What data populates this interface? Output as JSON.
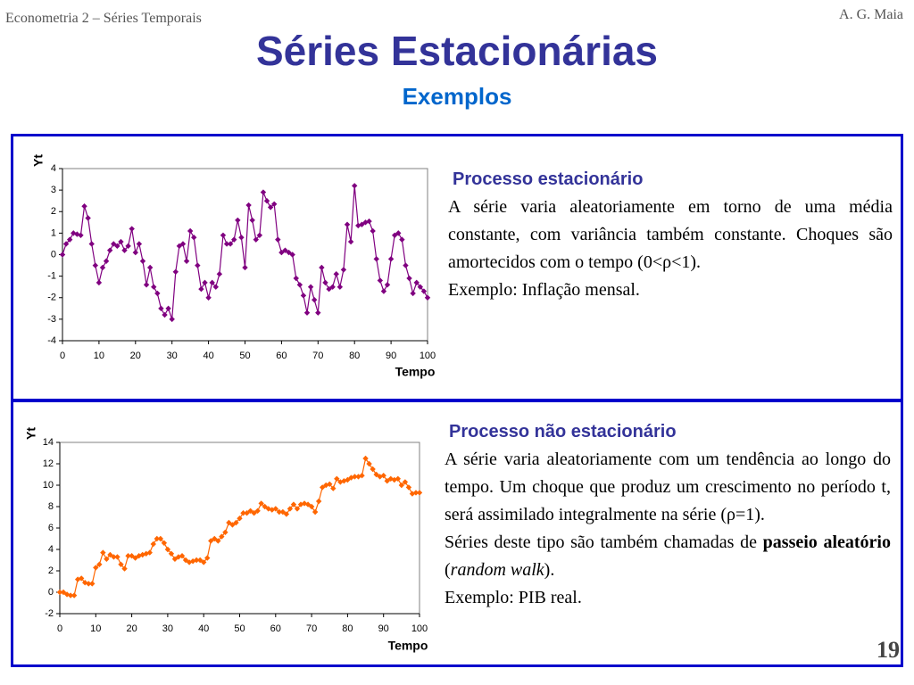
{
  "header": {
    "course": "Econometria 2 – Séries Temporais",
    "author": "A. G. Maia",
    "title": "Séries Estacionárias",
    "subtitle": "Exemplos",
    "page": "19"
  },
  "panels": [
    {
      "heading": "Processo estacionário",
      "paragraphs": [
        [
          {
            "text": "A série varia aleatoriamente em torno de uma média constante, com variância também constante. Choques são amortecidos com o tempo (0<ρ<1)."
          }
        ],
        [
          {
            "text": "Exemplo: Inflação mensal."
          }
        ]
      ]
    },
    {
      "heading": "Processo não estacionário",
      "paragraphs": [
        [
          {
            "text": "A série varia aleatoriamente com um tendência ao longo do tempo. Um choque que produz um crescimento no período t, será assimilado integralmente na série (ρ=1)."
          }
        ],
        [
          {
            "text": "Séries deste tipo são também chamadas de "
          },
          {
            "text": "passeio aleatório",
            "style": "bold"
          },
          {
            "text": " ("
          },
          {
            "text": "random walk",
            "style": "italic"
          },
          {
            "text": ")."
          }
        ],
        [
          {
            "text": "Exemplo: PIB real."
          }
        ]
      ]
    }
  ],
  "chart_data": [
    {
      "type": "line",
      "marker": "diamond",
      "color": "#800080",
      "ylabel": "Yt",
      "xlabel": "Tempo",
      "x": [
        0,
        1,
        2,
        3,
        4,
        5,
        6,
        7,
        8,
        9,
        10,
        11,
        12,
        13,
        14,
        15,
        16,
        17,
        18,
        19,
        20,
        21,
        22,
        23,
        24,
        25,
        26,
        27,
        28,
        29,
        30,
        31,
        32,
        33,
        34,
        35,
        36,
        37,
        38,
        39,
        40,
        41,
        42,
        43,
        44,
        45,
        46,
        47,
        48,
        49,
        50,
        51,
        52,
        53,
        54,
        55,
        56,
        57,
        58,
        59,
        60,
        61,
        62,
        63,
        64,
        65,
        66,
        67,
        68,
        69,
        70,
        71,
        72,
        73,
        74,
        75,
        76,
        77,
        78,
        79,
        80,
        81,
        82,
        83,
        84,
        85,
        86,
        87,
        88,
        89,
        90,
        91,
        92,
        93,
        94,
        95,
        96,
        97,
        98,
        99,
        100
      ],
      "values": [
        0,
        0.5,
        0.7,
        1.0,
        0.95,
        0.9,
        2.25,
        1.7,
        0.5,
        -0.5,
        -1.3,
        -0.6,
        -0.3,
        0.2,
        0.5,
        0.4,
        0.6,
        0.2,
        0.4,
        1.2,
        0.1,
        0.5,
        -0.3,
        -1.4,
        -0.6,
        -1.5,
        -1.8,
        -2.5,
        -2.8,
        -2.5,
        -3.0,
        -0.8,
        0.4,
        0.5,
        -0.3,
        1.1,
        0.8,
        -0.5,
        -1.6,
        -1.3,
        -2.0,
        -1.3,
        -1.5,
        -0.9,
        0.9,
        0.5,
        0.5,
        0.7,
        1.6,
        0.8,
        -0.6,
        2.3,
        1.6,
        0.7,
        0.9,
        2.9,
        2.5,
        2.2,
        2.35,
        0.7,
        0.1,
        0.2,
        0.1,
        0.0,
        -1.1,
        -1.4,
        -1.9,
        -2.7,
        -1.5,
        -2.1,
        -2.7,
        -0.6,
        -1.3,
        -1.6,
        -1.5,
        -0.9,
        -1.5,
        -0.7,
        1.4,
        0.6,
        3.2,
        1.35,
        1.4,
        1.5,
        1.55,
        1.1,
        -0.2,
        -1.2,
        -1.7,
        -1.4,
        -0.2,
        0.9,
        1.0,
        0.7,
        -0.5,
        -1.1,
        -1.8,
        -1.3,
        -1.5,
        -1.7,
        -2.0
      ],
      "xlim": [
        0,
        100
      ],
      "xticks": [
        0,
        10,
        20,
        30,
        40,
        50,
        60,
        70,
        80,
        90,
        100
      ],
      "ylim": [
        -4,
        4
      ],
      "yticks": [
        -4,
        -3,
        -2,
        -1,
        0,
        1,
        2,
        3,
        4
      ]
    },
    {
      "type": "line",
      "marker": "diamond",
      "color": "#ff6600",
      "ylabel": "Yt",
      "xlabel": "Tempo",
      "x": [
        0,
        1,
        2,
        3,
        4,
        5,
        6,
        7,
        8,
        9,
        10,
        11,
        12,
        13,
        14,
        15,
        16,
        17,
        18,
        19,
        20,
        21,
        22,
        23,
        24,
        25,
        26,
        27,
        28,
        29,
        30,
        31,
        32,
        33,
        34,
        35,
        36,
        37,
        38,
        39,
        40,
        41,
        42,
        43,
        44,
        45,
        46,
        47,
        48,
        49,
        50,
        51,
        52,
        53,
        54,
        55,
        56,
        57,
        58,
        59,
        60,
        61,
        62,
        63,
        64,
        65,
        66,
        67,
        68,
        69,
        70,
        71,
        72,
        73,
        74,
        75,
        76,
        77,
        78,
        79,
        80,
        81,
        82,
        83,
        84,
        85,
        86,
        87,
        88,
        89,
        90,
        91,
        92,
        93,
        94,
        95,
        96,
        97,
        98,
        99,
        100
      ],
      "values": [
        0,
        0,
        -0.2,
        -0.3,
        -0.3,
        1.2,
        1.3,
        0.9,
        0.8,
        0.8,
        2.3,
        2.6,
        3.7,
        3.1,
        3.5,
        3.3,
        3.3,
        2.6,
        2.2,
        3.4,
        3.4,
        3.2,
        3.4,
        3.5,
        3.6,
        3.7,
        4.5,
        5.0,
        5.0,
        4.6,
        4.0,
        3.6,
        3.1,
        3.3,
        3.4,
        3.0,
        2.8,
        2.9,
        3.0,
        3.0,
        2.8,
        3.2,
        4.8,
        5.0,
        4.8,
        5.2,
        5.6,
        6.5,
        6.3,
        6.5,
        6.9,
        7.4,
        7.4,
        7.6,
        7.4,
        7.6,
        8.3,
        8.0,
        7.8,
        7.7,
        7.8,
        7.5,
        7.5,
        7.3,
        7.8,
        8.2,
        7.8,
        8.2,
        8.3,
        8.2,
        8.0,
        7.5,
        8.5,
        9.8,
        10.0,
        10.1,
        9.7,
        10.6,
        10.3,
        10.4,
        10.5,
        10.7,
        10.8,
        10.8,
        10.9,
        12.5,
        12.0,
        11.5,
        11.0,
        10.8,
        10.9,
        10.4,
        10.6,
        10.5,
        10.6,
        10.0,
        10.3,
        9.8,
        9.2,
        9.3,
        9.3
      ],
      "xlim": [
        0,
        100
      ],
      "xticks": [
        0,
        10,
        20,
        30,
        40,
        50,
        60,
        70,
        80,
        90,
        100
      ],
      "ylim": [
        -2,
        14
      ],
      "yticks": [
        -2,
        0,
        2,
        4,
        6,
        8,
        10,
        12,
        14
      ]
    }
  ]
}
